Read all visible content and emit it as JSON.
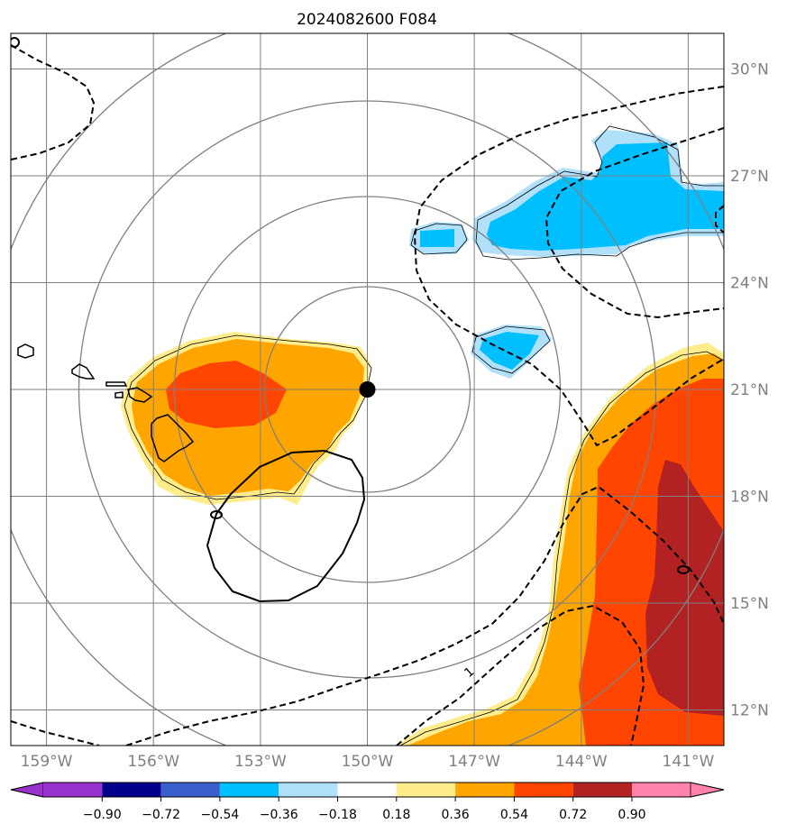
{
  "chart_data": {
    "type": "filled-contour map",
    "title": "2024082600 F084",
    "lon_range": [
      -160,
      -140
    ],
    "lat_range": [
      11,
      31
    ],
    "lon_ticks": [
      -159,
      -156,
      -153,
      -150,
      -147,
      -144,
      -141
    ],
    "lon_tick_labels": [
      "159°W",
      "156°W",
      "153°W",
      "150°W",
      "147°W",
      "144°W",
      "141°W"
    ],
    "lat_ticks": [
      12,
      15,
      18,
      21,
      24,
      27,
      30
    ],
    "lat_tick_labels": [
      "12°N",
      "15°N",
      "18°N",
      "21°N",
      "24°N",
      "27°N",
      "30°N"
    ],
    "grid": true,
    "center_marker": {
      "lon": -150.0,
      "lat": 21.0
    },
    "range_rings_deg": [
      3,
      6,
      9,
      12
    ],
    "contour_line_label": "1",
    "colorbar": {
      "extend": "both",
      "boundaries": [
        -0.9,
        -0.72,
        -0.54,
        -0.36,
        -0.18,
        0.18,
        0.36,
        0.54,
        0.72,
        0.9
      ],
      "tick_labels": [
        "−0.90",
        "−0.72",
        "−0.54",
        "−0.36",
        "−0.18",
        "0.18",
        "0.36",
        "0.54",
        "0.72",
        "0.90"
      ],
      "colors": [
        "#9932cc",
        "#00008b",
        "#3a5fcd",
        "#00bfff",
        "#b0e0fa",
        "#ffffff",
        "#ffec8b",
        "#ffa500",
        "#ff4500",
        "#b22222",
        "#ff82ab"
      ]
    },
    "colors": {
      "orange": "#ffa500",
      "light_yellow": "#ffec8b",
      "red_orange": "#ff4500",
      "dark_red": "#b22222",
      "deep_sky_blue": "#00bfff",
      "light_blue": "#b0e0fa",
      "grid": "#808080",
      "frame": "#000000"
    }
  }
}
